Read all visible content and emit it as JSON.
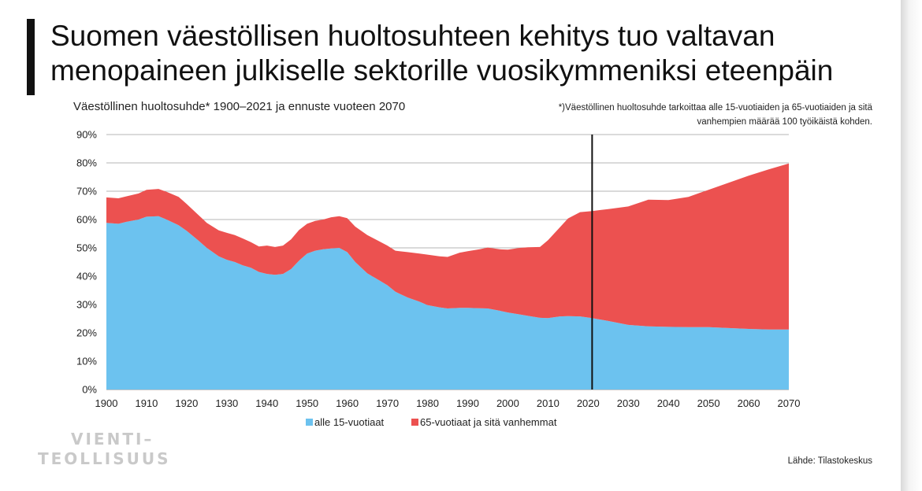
{
  "slide": {
    "title": "Suomen väestöllisen huoltosuhteen kehitys tuo valtavan menopaineen julkiselle sektorille vuosikymmeniksi eteenpäin",
    "footnote_line1": "*)Väestöllinen huoltosuhde tarkoittaa alle 15-vuotiaiden ja 65-vuotiaiden ja sitä",
    "footnote_line2": "vanhempien määrää 100 työikäistä kohden.",
    "source": "Lähde: Tilastokeskus",
    "logo_line1": "VIENTI–",
    "logo_line2": "TEOLLISUUS"
  },
  "chart_data": {
    "type": "area",
    "stacked": true,
    "title": "Väestöllinen huoltosuhde* 1900–2021 ja ennuste vuoteen 2070",
    "xlim": [
      1900,
      2070
    ],
    "ylim": [
      0,
      90
    ],
    "xticks": [
      1900,
      1910,
      1920,
      1930,
      1940,
      1950,
      1960,
      1970,
      1980,
      1990,
      2000,
      2010,
      2020,
      2030,
      2040,
      2050,
      2060,
      2070
    ],
    "yticks": [
      "0%",
      "10%",
      "20%",
      "30%",
      "40%",
      "50%",
      "60%",
      "70%",
      "80%",
      "90%"
    ],
    "grid": "horizontal",
    "legend_position": "bottom",
    "marker_line_x": 2021,
    "x": [
      1900,
      1903,
      1905,
      1908,
      1910,
      1913,
      1915,
      1918,
      1920,
      1923,
      1925,
      1928,
      1930,
      1932,
      1934,
      1936,
      1938,
      1940,
      1942,
      1944,
      1946,
      1948,
      1950,
      1952,
      1954,
      1956,
      1958,
      1960,
      1962,
      1965,
      1968,
      1970,
      1972,
      1975,
      1978,
      1980,
      1983,
      1985,
      1988,
      1990,
      1993,
      1995,
      1998,
      2000,
      2003,
      2005,
      2008,
      2010,
      2013,
      2015,
      2018,
      2021,
      2025,
      2030,
      2035,
      2040,
      2045,
      2050,
      2055,
      2060,
      2065,
      2070
    ],
    "series": [
      {
        "name": "alle 15-vuotiaat",
        "color": "#6cc2ef",
        "values": [
          58.8,
          58.5,
          59.2,
          60.0,
          61.0,
          61.2,
          60.0,
          58.0,
          56.0,
          52.5,
          50.0,
          47.0,
          45.8,
          45.0,
          43.8,
          43.0,
          41.5,
          40.8,
          40.5,
          40.8,
          42.5,
          45.5,
          48.0,
          49.0,
          49.5,
          49.8,
          50.0,
          48.5,
          45.0,
          41.0,
          38.5,
          36.8,
          34.5,
          32.5,
          31.0,
          29.8,
          29.0,
          28.6,
          28.8,
          28.8,
          28.7,
          28.6,
          27.8,
          27.2,
          26.5,
          26.0,
          25.3,
          25.2,
          25.8,
          25.9,
          25.8,
          25.2,
          24.2,
          22.8,
          22.3,
          22.1,
          22.0,
          22.0,
          21.7,
          21.4,
          21.2,
          21.2
        ]
      },
      {
        "name": "65-vuotiaat ja sitä vanhemmat",
        "color": "#ec5150",
        "values": [
          9.0,
          9.0,
          9.0,
          9.2,
          9.5,
          9.6,
          9.8,
          10.0,
          9.5,
          9.0,
          8.8,
          9.2,
          9.5,
          9.5,
          9.5,
          9.0,
          9.0,
          10.0,
          9.8,
          10.0,
          10.5,
          10.8,
          10.5,
          10.5,
          10.5,
          11.0,
          11.2,
          12.0,
          12.5,
          13.5,
          13.8,
          14.0,
          14.5,
          16.0,
          17.0,
          17.8,
          18.0,
          18.2,
          19.5,
          20.0,
          20.8,
          21.5,
          21.7,
          22.2,
          23.5,
          24.2,
          25.0,
          27.5,
          31.5,
          34.5,
          36.8,
          37.8,
          39.5,
          41.8,
          44.7,
          44.8,
          46.0,
          48.5,
          51.3,
          54.1,
          56.5,
          58.6
        ]
      }
    ]
  }
}
